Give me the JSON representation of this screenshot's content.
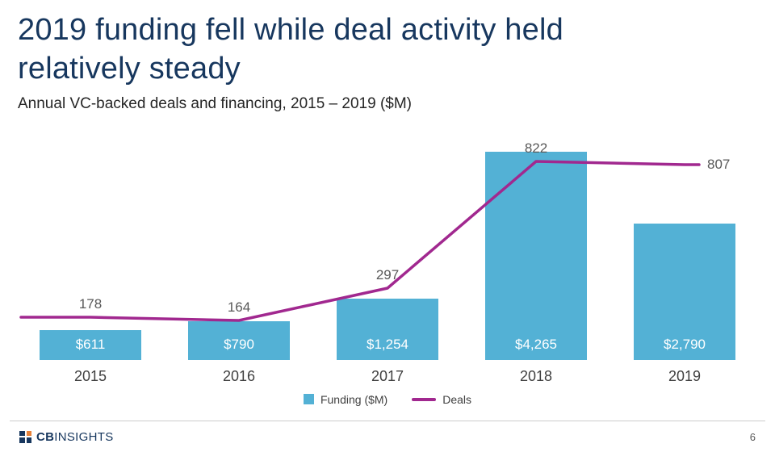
{
  "slide": {
    "title_lines": [
      "2019 funding fell while deal activity held",
      "relatively steady"
    ],
    "subtitle": "Annual VC-backed deals and financing, 2015 – 2019 ($M)",
    "page_number": "6",
    "brand": {
      "bold": "CB",
      "light": "INSIGHTS"
    }
  },
  "chart_data": {
    "type": "bar+line combo",
    "categories": [
      "2015",
      "2016",
      "2017",
      "2018",
      "2019"
    ],
    "series": [
      {
        "name": "Funding ($M)",
        "type": "bar",
        "values": [
          611,
          790,
          1254,
          4265,
          2790
        ],
        "labels": [
          "$611",
          "$790",
          "$1,254",
          "$4,265",
          "$2,790"
        ],
        "color": "#53b1d5"
      },
      {
        "name": "Deals",
        "type": "line",
        "values": [
          178,
          164,
          297,
          822,
          807
        ],
        "labels": [
          "178",
          "164",
          "297",
          "822",
          "807"
        ],
        "color": "#a1288f"
      }
    ],
    "legend_position": "bottom-center",
    "grid": false,
    "value_labels": "inside-base (bars, white) / above points (line, gray)"
  }
}
